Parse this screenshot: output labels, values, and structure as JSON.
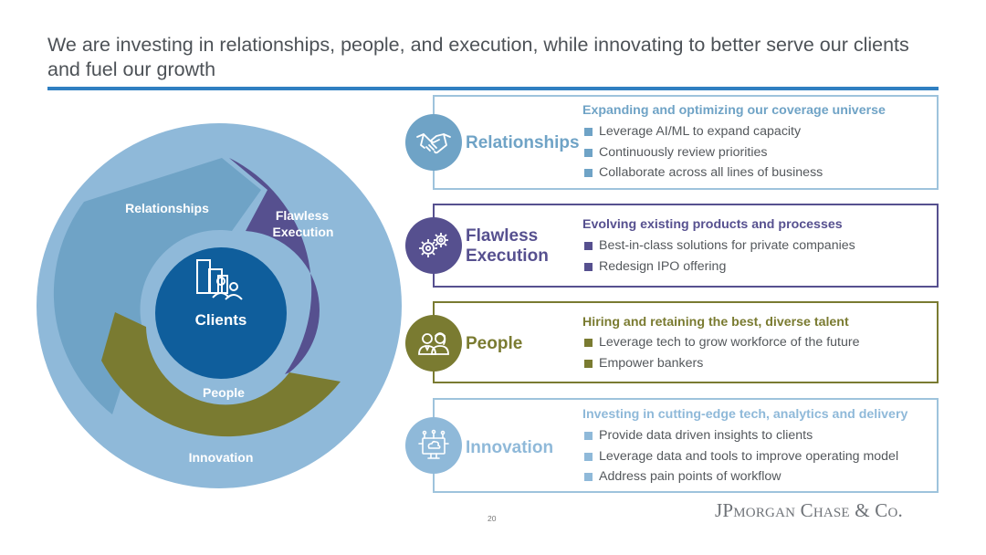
{
  "title": "We are investing in relationships, people, and execution, while innovating to better serve our clients and fuel our growth",
  "colors": {
    "relationships": "#6fa3c6",
    "flawless_execution": "#56508f",
    "people": "#7a7b31",
    "innovation": "#8fb9d9",
    "clients": "#0f5e9c",
    "rule": "#2f7fc1"
  },
  "diagram": {
    "outer_label": "Innovation",
    "segment_relationships": "Relationships",
    "segment_execution_line1": "Flawless",
    "segment_execution_line2": "Execution",
    "segment_people": "People",
    "center_label": "Clients",
    "center_icon": "buildings-people-icon"
  },
  "panels": [
    {
      "label": "Relationships",
      "icon": "handshake-icon",
      "heading": "Expanding and optimizing our coverage universe",
      "bullets": [
        "Leverage AI/ML to expand capacity",
        "Continuously review priorities",
        "Collaborate across all lines of business"
      ]
    },
    {
      "label_line1": "Flawless",
      "label_line2": "Execution",
      "icon": "gears-icon",
      "heading": "Evolving existing products and processes",
      "bullets": [
        "Best-in-class solutions for private companies",
        "Redesign IPO offering"
      ]
    },
    {
      "label": "People",
      "icon": "people-icon",
      "heading": "Hiring and retaining the best, diverse talent",
      "bullets": [
        "Leverage tech to grow workforce of the future",
        "Empower bankers"
      ]
    },
    {
      "label": "Innovation",
      "icon": "monitor-network-icon",
      "heading": "Investing in cutting-edge tech, analytics and delivery",
      "bullets": [
        "Provide data driven insights to clients",
        "Leverage data and tools to improve operating model",
        "Address pain points of workflow"
      ]
    }
  ],
  "footer": {
    "page_number": "20",
    "logo_text": "JPMorgan Chase & Co."
  }
}
